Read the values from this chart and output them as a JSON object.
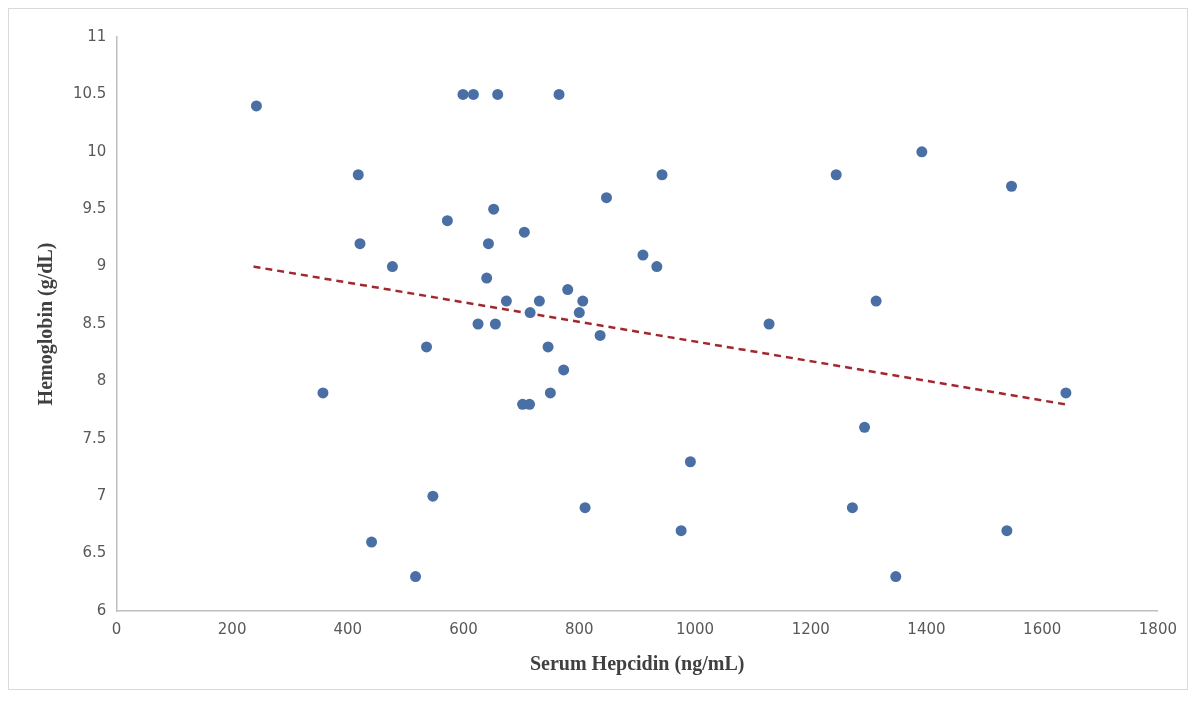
{
  "chart_data": {
    "type": "scatter",
    "xlabel": "Serum Hepcidin (ng/mL)",
    "ylabel": "Hemoglobin (g/dL)",
    "xlim": [
      0,
      1800
    ],
    "xticks": [
      0,
      200,
      400,
      600,
      800,
      1000,
      1200,
      1400,
      1600,
      1800
    ],
    "ylim": [
      6,
      11
    ],
    "yticks": [
      6,
      6.5,
      7,
      7.5,
      8,
      8.5,
      9,
      9.5,
      10,
      10.5,
      11
    ],
    "grid": false,
    "legend": false,
    "marker": "circle",
    "series": [
      {
        "type": "scatter",
        "color": "#4a6fa5",
        "x": [
          242,
          599,
          617,
          659,
          765,
          418,
          652,
          572,
          705,
          421,
          643,
          847,
          910,
          477,
          640,
          780,
          674,
          731,
          806,
          800,
          715,
          625,
          655,
          836,
          536,
          746,
          773,
          357,
          750,
          702,
          714,
          547,
          810,
          441,
          517,
          943,
          1244,
          1392,
          1547,
          934,
          1313,
          1128,
          1641,
          1293,
          992,
          1272,
          976,
          1539,
          1347
        ],
        "values": [
          10.4,
          10.5,
          10.5,
          10.5,
          10.5,
          9.8,
          9.5,
          9.4,
          9.3,
          9.2,
          9.2,
          9.6,
          9.1,
          9.0,
          8.9,
          8.8,
          8.7,
          8.7,
          8.7,
          8.6,
          8.6,
          8.5,
          8.5,
          8.4,
          8.3,
          8.3,
          8.1,
          7.9,
          7.9,
          7.8,
          7.8,
          7.0,
          6.9,
          6.6,
          6.3,
          9.8,
          9.8,
          10.0,
          9.7,
          9.0,
          8.7,
          8.5,
          7.9,
          7.6,
          7.3,
          6.9,
          6.7,
          6.7,
          6.3
        ]
      },
      {
        "type": "line",
        "color": "#a0282e",
        "line_style": "dashed",
        "marker": "none",
        "x": [
          237,
          1640
        ],
        "values": [
          9.0,
          7.8
        ]
      }
    ]
  }
}
